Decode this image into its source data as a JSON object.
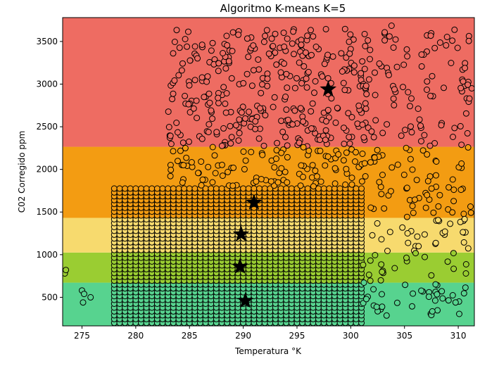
{
  "chart_data": {
    "type": "scatter",
    "title": "Algoritmo K-means K=5",
    "xlabel": "Temperatura °K",
    "ylabel": "C02 Corregido ppm",
    "xlim": [
      273.2,
      311.5
    ],
    "ylim": [
      165,
      3780
    ],
    "xticks": [
      275,
      280,
      285,
      290,
      295,
      300,
      305,
      310
    ],
    "yticks": [
      500,
      1000,
      1500,
      2000,
      2500,
      3000,
      3500
    ],
    "grid": false,
    "legend": "none",
    "regions": [
      {
        "y0": 165,
        "y1": 672,
        "color": "#57d38f"
      },
      {
        "y0": 672,
        "y1": 1025,
        "color": "#9acd32"
      },
      {
        "y0": 1025,
        "y1": 1432,
        "color": "#f7da6e"
      },
      {
        "y0": 1432,
        "y1": 2265,
        "color": "#f39c12"
      },
      {
        "y0": 2265,
        "y1": 3780,
        "color": "#ee6c62"
      }
    ],
    "centroids": [
      {
        "x": 290.2,
        "y": 460
      },
      {
        "x": 289.7,
        "y": 860
      },
      {
        "x": 289.8,
        "y": 1240
      },
      {
        "x": 291.0,
        "y": 1610
      },
      {
        "x": 297.9,
        "y": 2940
      }
    ],
    "dense_band": {
      "x_min": 278,
      "x_max": 301,
      "y_min": 200,
      "y_max": 1780,
      "x_step": 0.5
    },
    "outliers": [
      {
        "x": 273.4,
        "y": 780
      },
      {
        "x": 273.5,
        "y": 820
      },
      {
        "x": 275.0,
        "y": 580
      },
      {
        "x": 275.2,
        "y": 540
      },
      {
        "x": 275.1,
        "y": 440
      },
      {
        "x": 275.8,
        "y": 500
      }
    ]
  }
}
